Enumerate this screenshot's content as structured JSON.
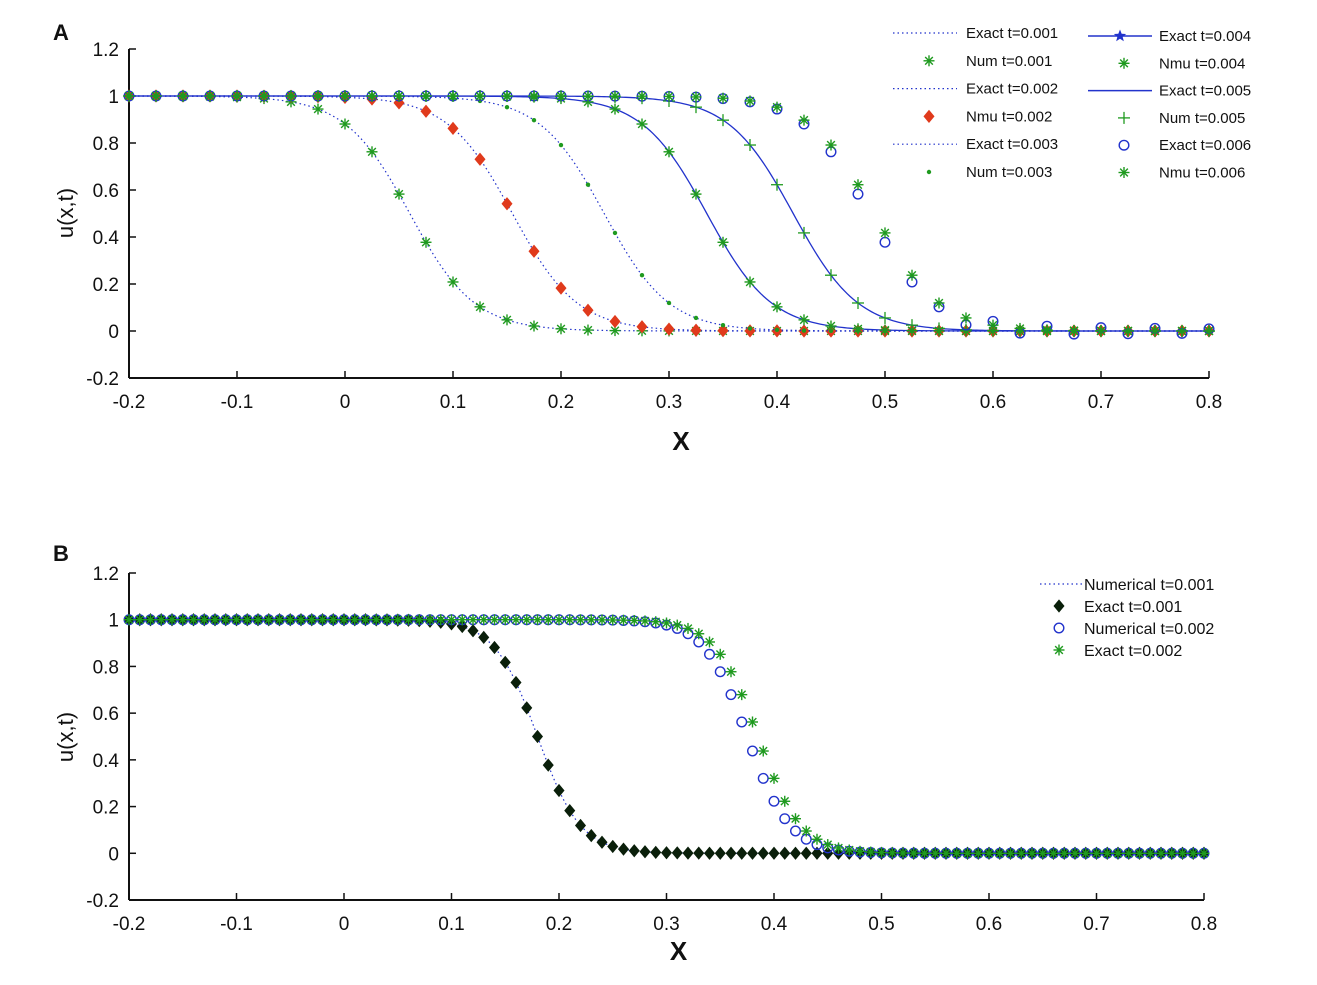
{
  "colors": {
    "blue": "#2233cc",
    "green": "#1f9a1f",
    "red": "#e03a1c",
    "black": "#0a1f0a"
  },
  "chart_data": [
    {
      "type": "line",
      "panel": "A",
      "xlabel": "X",
      "ylabel": "u(x,t)",
      "xlim": [
        -0.2,
        0.8
      ],
      "ylim": [
        -0.2,
        1.2
      ],
      "xticks": [
        "-0.2",
        "-0.1",
        "0",
        "0.1",
        "0.2",
        "0.3",
        "0.4",
        "0.5",
        "0.6",
        "0.7",
        "0.8"
      ],
      "yticks": [
        "-0.2",
        "0",
        "0.2",
        "0.4",
        "0.6",
        "0.8",
        "1",
        "1.2"
      ],
      "marker_x": [
        -0.2,
        -0.175,
        -0.15,
        -0.125,
        -0.1,
        -0.075,
        -0.05,
        -0.025,
        0,
        0.025,
        0.05,
        0.075,
        0.1,
        0.125,
        0.15,
        0.175,
        0.2,
        0.225,
        0.25,
        0.275,
        0.3,
        0.325,
        0.35,
        0.375,
        0.4,
        0.425,
        0.45,
        0.475,
        0.5,
        0.525,
        0.55,
        0.575,
        0.6,
        0.625,
        0.65,
        0.675,
        0.7,
        0.725,
        0.75,
        0.775,
        0.8
      ],
      "series": [
        {
          "name": "Exact t=0.001",
          "style": "dotted",
          "color": "blue",
          "center": 0.06,
          "width": 0.03
        },
        {
          "name": "Num t=0.001",
          "style": "marker",
          "marker": "star",
          "color": "green",
          "center": 0.06,
          "width": 0.03
        },
        {
          "name": "Exact t=0.002",
          "style": "dotted",
          "color": "blue",
          "center": 0.155,
          "width": 0.03
        },
        {
          "name": "Nmu t=0.002",
          "style": "marker",
          "marker": "diamond",
          "color": "red",
          "center": 0.155,
          "width": 0.03
        },
        {
          "name": "Exact t=0.003",
          "style": "dotted",
          "color": "blue",
          "center": 0.24,
          "width": 0.03
        },
        {
          "name": "Num t=0.003",
          "style": "marker",
          "marker": "dot",
          "color": "green",
          "center": 0.24,
          "width": 0.03
        },
        {
          "name": "Exact t=0.004",
          "style": "solid-star",
          "color": "blue",
          "center": 0.335,
          "width": 0.03
        },
        {
          "name": "Nmu t=0.004",
          "style": "marker",
          "marker": "star",
          "color": "green",
          "center": 0.335,
          "width": 0.03
        },
        {
          "name": "Exact t=0.005",
          "style": "solid",
          "color": "blue",
          "center": 0.415,
          "width": 0.03
        },
        {
          "name": "Num t=0.005",
          "style": "marker",
          "marker": "plus",
          "color": "green",
          "center": 0.415,
          "width": 0.03
        },
        {
          "name": "Exact t=0.006",
          "style": "marker",
          "marker": "circle",
          "color": "blue",
          "center": 0.485,
          "width": 0.03,
          "oscillation": 0.02
        },
        {
          "name": "Nmu t=0.006",
          "style": "marker",
          "marker": "star",
          "color": "green",
          "center": 0.49,
          "width": 0.03
        }
      ]
    },
    {
      "type": "line",
      "panel": "B",
      "xlabel": "X",
      "ylabel": "u(x,t)",
      "xlim": [
        -0.2,
        0.8
      ],
      "ylim": [
        -0.2,
        1.2
      ],
      "xticks": [
        "-0.2",
        "-0.1",
        "0",
        "0.1",
        "0.2",
        "0.3",
        "0.4",
        "0.5",
        "0.6",
        "0.7",
        "0.8"
      ],
      "yticks": [
        "-0.2",
        "0",
        "0.2",
        "0.4",
        "0.6",
        "0.8",
        "1",
        "1.2"
      ],
      "marker_x_start": -0.2,
      "marker_x_step": 0.01,
      "marker_count": 101,
      "series": [
        {
          "name": "Numerical t=0.001",
          "style": "dotted",
          "color": "blue",
          "center": 0.18,
          "width": 0.02
        },
        {
          "name": "Exact t=0.001",
          "style": "marker",
          "marker": "diamond",
          "color": "black",
          "center": 0.18,
          "width": 0.02
        },
        {
          "name": "Numerical t=0.002",
          "style": "marker",
          "marker": "circle",
          "color": "blue",
          "center": 0.375,
          "width": 0.02
        },
        {
          "name": "Exact t=0.002",
          "style": "marker",
          "marker": "star",
          "color": "green",
          "center": 0.385,
          "width": 0.02
        }
      ]
    }
  ]
}
